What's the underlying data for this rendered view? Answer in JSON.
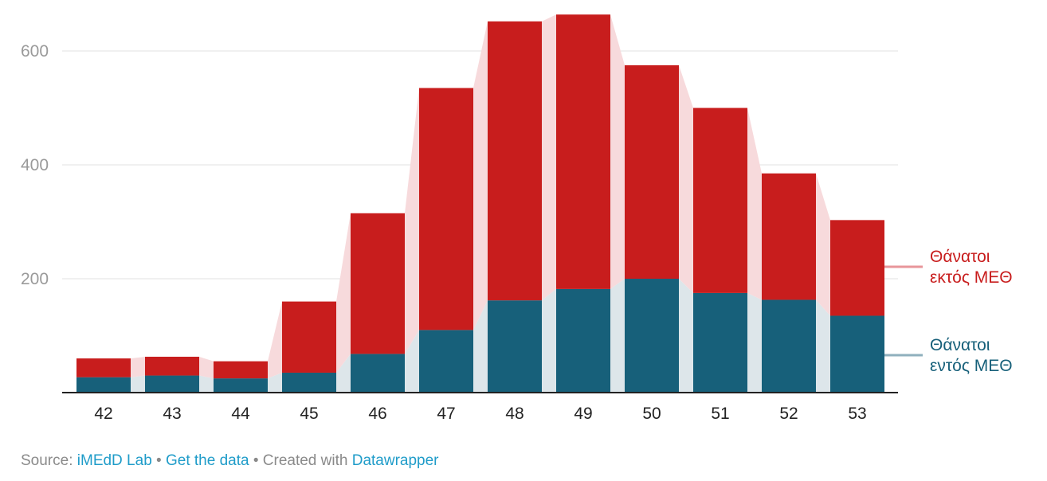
{
  "chart_data": {
    "type": "bar",
    "stacked": true,
    "categories": [
      "42",
      "43",
      "44",
      "45",
      "46",
      "47",
      "48",
      "49",
      "50",
      "51",
      "52",
      "53"
    ],
    "series": [
      {
        "name": "Θάνατοι εντός ΜΕΘ",
        "color": "#17607a",
        "values": [
          27,
          30,
          25,
          35,
          68,
          110,
          162,
          182,
          200,
          175,
          163,
          135
        ]
      },
      {
        "name": "Θάνατοι εκτός ΜΕΘ",
        "color": "#c81d1d",
        "values": [
          33,
          33,
          30,
          125,
          247,
          425,
          490,
          482,
          375,
          325,
          222,
          168
        ]
      }
    ],
    "ylim": [
      0,
      670
    ],
    "yticks": [
      200,
      400,
      600
    ],
    "grid": true,
    "legend_placement": "right, inline labels",
    "series_label_lines": [
      [
        "Θάνατοι",
        "εντός ΜΕΘ"
      ],
      [
        "Θάνατοι",
        "εκτός ΜΕΘ"
      ]
    ],
    "band_colors": [
      "#dde6ea",
      "#f7dadc"
    ],
    "label_connector_colors": [
      "#8fb0bd",
      "#e8959a"
    ]
  },
  "footer": {
    "source_prefix": "Source:",
    "source_link": "iMEdD Lab",
    "separator": "•",
    "get_data": "Get the data",
    "created_with": "Created with",
    "tool": "Datawrapper"
  }
}
